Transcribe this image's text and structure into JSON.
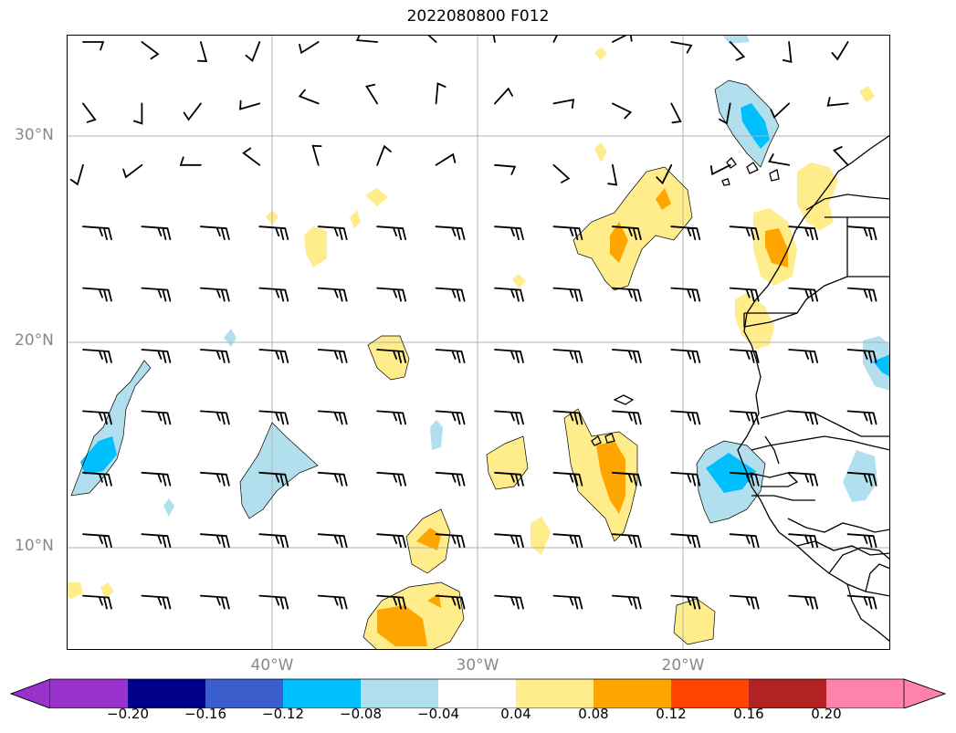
{
  "title": "2022080800 F012",
  "lat_labels": [
    "30°N",
    "20°N",
    "10°N"
  ],
  "lon_labels": [
    "40°W",
    "30°W",
    "20°W"
  ],
  "colorbar": {
    "ticks": [
      "−0.20",
      "−0.16",
      "−0.12",
      "−0.08",
      "−0.04",
      "0.04",
      "0.08",
      "0.12",
      "0.16",
      "0.20"
    ],
    "colors": [
      "#9a32cd",
      "#00008b",
      "#3a5fcd",
      "#00bfff",
      "#b2dfee",
      "#ffffff",
      "#ffec8b",
      "#ffa500",
      "#ff4500",
      "#b22222",
      "#ff82ab"
    ]
  },
  "colors": {
    "grid": "#b0b0b0",
    "barb": "#000000",
    "coast": "#000000",
    "neg_light": "#b2dfee",
    "neg_mid": "#00bfff",
    "pos_light": "#ffec8b",
    "pos_mid": "#ffa500"
  }
}
